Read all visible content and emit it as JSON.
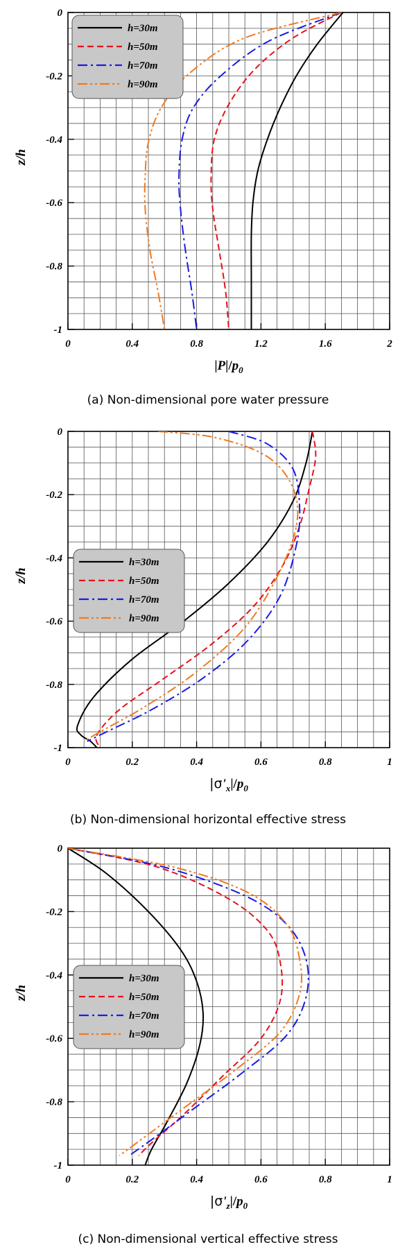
{
  "chart_data": [
    {
      "type": "line",
      "panel": "a",
      "caption": "(a) Non-dimensional pore water pressure",
      "xlabel": "|P|/p0",
      "xlabel_parts": [
        "|",
        "P",
        "|/",
        "p",
        "0"
      ],
      "ylabel": "z/h",
      "xlim": [
        0,
        2
      ],
      "ylim": [
        -1,
        0
      ],
      "xticks": [
        0,
        0.4,
        0.8,
        1.2,
        1.6,
        2
      ],
      "xtick_labels": [
        "0",
        "0.4",
        "0.8",
        "1.2",
        "1.6",
        "2"
      ],
      "yticks": [
        0,
        -0.2,
        -0.4,
        -0.6,
        -0.8,
        -1
      ],
      "ytick_labels": [
        "0",
        "-0.2",
        "-0.4",
        "-0.6",
        "-0.8",
        "-1"
      ],
      "grid": true,
      "legend_position": "top-left",
      "series": [
        {
          "name": "h=30m",
          "color": "#000000",
          "dash": "solid",
          "x": [
            1.71,
            1.55,
            1.42,
            1.32,
            1.24,
            1.18,
            1.15,
            1.14,
            1.14,
            1.14
          ],
          "y": [
            0,
            -0.1,
            -0.2,
            -0.3,
            -0.4,
            -0.5,
            -0.6,
            -0.7,
            -0.85,
            -1.0
          ]
        },
        {
          "name": "h=50m",
          "color": "#e8101a",
          "dash": "dashed",
          "x": [
            1.7,
            1.4,
            1.16,
            1.0,
            0.91,
            0.89,
            0.9,
            0.94,
            0.98,
            1.0
          ],
          "y": [
            0,
            -0.08,
            -0.18,
            -0.29,
            -0.4,
            -0.52,
            -0.62,
            -0.75,
            -0.88,
            -1.0
          ]
        },
        {
          "name": "h=70m",
          "color": "#1a1ae6",
          "dash": "dash-dot",
          "x": [
            1.7,
            1.25,
            0.95,
            0.78,
            0.71,
            0.69,
            0.7,
            0.73,
            0.77,
            0.8
          ],
          "y": [
            0,
            -0.09,
            -0.2,
            -0.3,
            -0.4,
            -0.52,
            -0.62,
            -0.75,
            -0.88,
            -1.0
          ]
        },
        {
          "name": "h=90m",
          "color": "#f07a1e",
          "dash": "dash-dot-dot",
          "x": [
            1.7,
            1.1,
            0.76,
            0.58,
            0.5,
            0.48,
            0.48,
            0.51,
            0.56,
            0.6
          ],
          "y": [
            0,
            -0.08,
            -0.19,
            -0.3,
            -0.41,
            -0.52,
            -0.62,
            -0.75,
            -0.88,
            -1.0
          ]
        }
      ]
    },
    {
      "type": "line",
      "panel": "b",
      "caption": "(b) Non-dimensional horizontal effective stress",
      "xlabel": "|σ'x|/p0",
      "xlabel_parts": [
        "|σ",
        "'",
        "x",
        "|/",
        "p",
        "0"
      ],
      "ylabel": "z/h",
      "xlim": [
        0,
        1
      ],
      "ylim": [
        -1,
        0
      ],
      "xticks": [
        0,
        0.2,
        0.4,
        0.6,
        0.8,
        1
      ],
      "xtick_labels": [
        "0",
        "0.2",
        "0.4",
        "0.6",
        "0.8",
        "1"
      ],
      "yticks": [
        0,
        -0.2,
        -0.4,
        -0.6,
        -0.8,
        -1
      ],
      "ytick_labels": [
        "0",
        "-0.2",
        "-0.4",
        "-0.6",
        "-0.8",
        "-1"
      ],
      "grid": true,
      "legend_position": "center-left",
      "series": [
        {
          "name": "h=30m",
          "color": "#000000",
          "dash": "solid",
          "x": [
            0.76,
            0.74,
            0.7,
            0.62,
            0.5,
            0.36,
            0.2,
            0.08,
            0.03,
            0.04,
            0.07,
            0.09
          ],
          "y": [
            0,
            -0.1,
            -0.22,
            -0.35,
            -0.48,
            -0.6,
            -0.72,
            -0.84,
            -0.93,
            -0.96,
            -0.98,
            -1.0
          ]
        },
        {
          "name": "h=50m",
          "color": "#e8101a",
          "dash": "dashed",
          "x": [
            0.76,
            0.77,
            0.75,
            0.72,
            0.67,
            0.58,
            0.45,
            0.3,
            0.16,
            0.09,
            0.1
          ],
          "y": [
            0,
            -0.08,
            -0.18,
            -0.3,
            -0.42,
            -0.55,
            -0.67,
            -0.78,
            -0.88,
            -0.96,
            -1.0
          ]
        },
        {
          "name": "h=70m",
          "color": "#1a1ae6",
          "dash": "dash-dot",
          "x": [
            0.5,
            0.62,
            0.7,
            0.72,
            0.71,
            0.66,
            0.56,
            0.42,
            0.26,
            0.12,
            0.06
          ],
          "y": [
            0,
            -0.04,
            -0.12,
            -0.24,
            -0.36,
            -0.52,
            -0.66,
            -0.78,
            -0.88,
            -0.95,
            -0.98
          ]
        },
        {
          "name": "h=90m",
          "color": "#f07a1e",
          "dash": "dash-dot-dot",
          "x": [
            0.28,
            0.46,
            0.62,
            0.7,
            0.71,
            0.65,
            0.55,
            0.4,
            0.24,
            0.1,
            0.05
          ],
          "y": [
            0,
            -0.02,
            -0.08,
            -0.18,
            -0.3,
            -0.46,
            -0.62,
            -0.76,
            -0.87,
            -0.95,
            -0.98
          ]
        }
      ]
    },
    {
      "type": "line",
      "panel": "c",
      "caption": "(c) Non-dimensional vertical effective stress",
      "xlabel": "|σ'z|/p0",
      "xlabel_parts": [
        "|σ",
        "'",
        "z",
        "|/",
        "p",
        "0"
      ],
      "ylabel": "z/h",
      "xlim": [
        0,
        1
      ],
      "ylim": [
        -1,
        0
      ],
      "xticks": [
        0,
        0.2,
        0.4,
        0.6,
        0.8,
        1
      ],
      "xtick_labels": [
        "0",
        "0.2",
        "0.4",
        "0.6",
        "0.8",
        "1"
      ],
      "yticks": [
        0,
        -0.2,
        -0.4,
        -0.6,
        -0.8,
        -1
      ],
      "ytick_labels": [
        "0",
        "-0.2",
        "-0.4",
        "-0.6",
        "-0.8",
        "-1"
      ],
      "grid": true,
      "legend_position": "center-left",
      "series": [
        {
          "name": "h=30m",
          "color": "#000000",
          "dash": "solid",
          "x": [
            0.0,
            0.12,
            0.25,
            0.35,
            0.4,
            0.42,
            0.41,
            0.37,
            0.31,
            0.26,
            0.24
          ],
          "y": [
            0,
            -0.08,
            -0.2,
            -0.32,
            -0.42,
            -0.52,
            -0.62,
            -0.74,
            -0.86,
            -0.95,
            -1.0
          ]
        },
        {
          "name": "h=50m",
          "color": "#e8101a",
          "dash": "dashed",
          "x": [
            0.0,
            0.28,
            0.5,
            0.62,
            0.66,
            0.66,
            0.6,
            0.48,
            0.36,
            0.26,
            0.22
          ],
          "y": [
            0,
            -0.06,
            -0.16,
            -0.26,
            -0.36,
            -0.48,
            -0.6,
            -0.72,
            -0.84,
            -0.93,
            -0.97
          ]
        },
        {
          "name": "h=70m",
          "color": "#1a1ae6",
          "dash": "dash-dot",
          "x": [
            0.0,
            0.3,
            0.55,
            0.68,
            0.74,
            0.74,
            0.68,
            0.54,
            0.38,
            0.26,
            0.19
          ],
          "y": [
            0,
            -0.06,
            -0.15,
            -0.24,
            -0.35,
            -0.47,
            -0.59,
            -0.71,
            -0.83,
            -0.92,
            -0.97
          ]
        },
        {
          "name": "h=90m",
          "color": "#f07a1e",
          "dash": "dash-dot-dot",
          "x": [
            0.0,
            0.33,
            0.56,
            0.68,
            0.72,
            0.72,
            0.66,
            0.52,
            0.36,
            0.24,
            0.16
          ],
          "y": [
            0,
            -0.06,
            -0.14,
            -0.24,
            -0.35,
            -0.46,
            -0.58,
            -0.7,
            -0.82,
            -0.91,
            -0.97
          ]
        }
      ]
    }
  ]
}
